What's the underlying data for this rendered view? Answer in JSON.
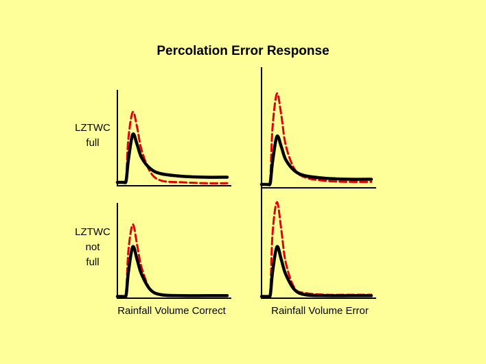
{
  "title": "Percolation Error Response",
  "rows": [
    {
      "label_lines": [
        "LZTWC",
        "full"
      ]
    },
    {
      "label_lines": [
        "LZTWC",
        "not",
        "full"
      ]
    }
  ],
  "columns": [
    {
      "label": "Rainfall Volume Correct"
    },
    {
      "label": "Rainfall Volume Error"
    }
  ],
  "colors": {
    "background": "#ffff99",
    "observed": "#000000",
    "simulated": "#e00000"
  },
  "chart_data": [
    {
      "type": "line",
      "row": "LZTWC full",
      "column": "Rainfall Volume Correct",
      "x": [
        0,
        4,
        6,
        8,
        10,
        14,
        18,
        22,
        30,
        40,
        60,
        80,
        100
      ],
      "series": [
        {
          "style": "solid",
          "color": "#000000",
          "values": [
            4,
            4,
            4,
            6,
            30,
            60,
            48,
            33,
            20,
            14,
            11,
            10,
            10
          ]
        },
        {
          "style": "dashed",
          "color": "#e00000",
          "values": [
            4,
            4,
            4,
            10,
            55,
            86,
            68,
            42,
            16,
            6,
            4,
            3,
            3
          ]
        }
      ]
    },
    {
      "type": "line",
      "row": "LZTWC full",
      "column": "Rainfall Volume Error",
      "x": [
        0,
        4,
        6,
        8,
        10,
        14,
        18,
        22,
        30,
        40,
        60,
        80,
        100
      ],
      "series": [
        {
          "style": "solid",
          "color": "#000000",
          "values": [
            4,
            4,
            4,
            6,
            30,
            60,
            48,
            33,
            20,
            14,
            11,
            10,
            10
          ]
        },
        {
          "style": "dashed",
          "color": "#e00000",
          "values": [
            4,
            4,
            4,
            12,
            70,
            110,
            85,
            50,
            22,
            12,
            8,
            7,
            7
          ]
        }
      ]
    },
    {
      "type": "line",
      "row": "LZTWC not full",
      "column": "Rainfall Volume Correct",
      "x": [
        0,
        4,
        6,
        8,
        10,
        14,
        18,
        22,
        30,
        40,
        60,
        80,
        100
      ],
      "series": [
        {
          "style": "solid",
          "color": "#000000",
          "values": [
            2,
            2,
            2,
            4,
            30,
            60,
            45,
            28,
            10,
            4,
            3,
            3,
            3
          ]
        },
        {
          "style": "dashed",
          "color": "#e00000",
          "values": [
            2,
            2,
            2,
            6,
            55,
            86,
            62,
            36,
            10,
            4,
            3,
            3,
            3
          ]
        }
      ]
    },
    {
      "type": "line",
      "row": "LZTWC not full",
      "column": "Rainfall Volume Error",
      "x": [
        0,
        4,
        6,
        8,
        10,
        14,
        18,
        22,
        30,
        40,
        60,
        80,
        100
      ],
      "series": [
        {
          "style": "solid",
          "color": "#000000",
          "values": [
            2,
            2,
            2,
            4,
            30,
            60,
            45,
            28,
            10,
            4,
            3,
            3,
            3
          ]
        },
        {
          "style": "dashed",
          "color": "#e00000",
          "values": [
            2,
            2,
            2,
            8,
            75,
            112,
            80,
            42,
            12,
            6,
            4,
            4,
            4
          ]
        }
      ]
    }
  ]
}
